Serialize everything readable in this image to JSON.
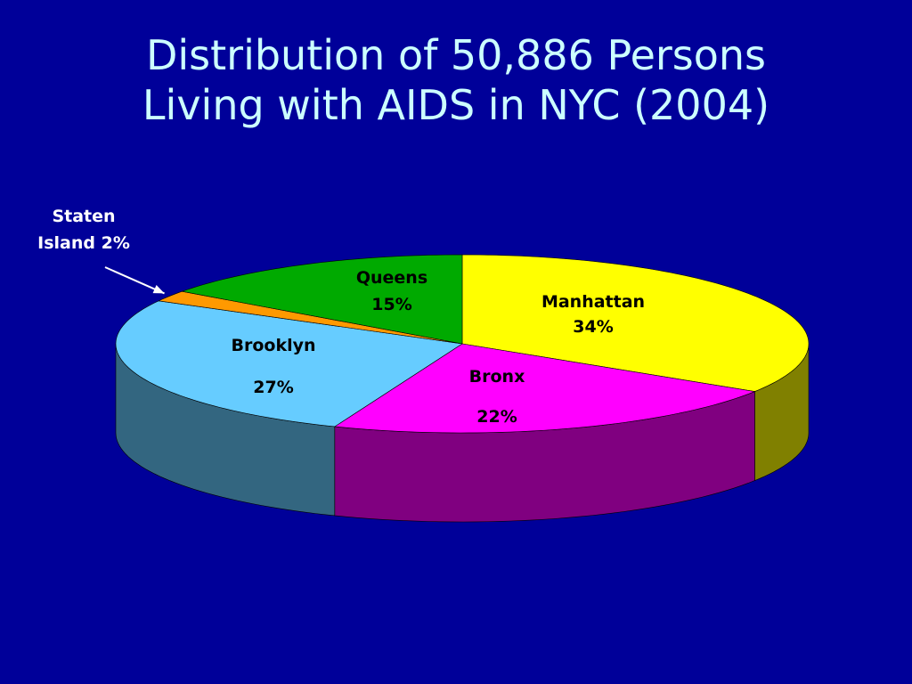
{
  "slide": {
    "title_line1": "Distribution of 50,886 Persons",
    "title_line2": "Living with AIDS in NYC (2004)"
  },
  "chart_data": {
    "type": "pie",
    "title": "Distribution of 50,886 Persons Living with AIDS in NYC (2004)",
    "unit": "%",
    "categories": [
      "Manhattan",
      "Bronx",
      "Brooklyn",
      "Staten Island",
      "Queens"
    ],
    "values": [
      34,
      22,
      27,
      2,
      15
    ],
    "value_labels": [
      "34%",
      "22%",
      "27%",
      "2%",
      "15%"
    ],
    "label_lines": [
      [
        "Manhattan",
        "34%"
      ],
      [
        "Bronx",
        "22%"
      ],
      [
        "Brooklyn",
        "27%"
      ],
      [
        "Staten",
        "Island 2%"
      ],
      [
        "Queens",
        "15%"
      ]
    ],
    "colors": [
      "#ffff00",
      "#ff00ff",
      "#66ccff",
      "#ff9900",
      "#00aa00"
    ],
    "side_colors": [
      "#808000",
      "#800080",
      "#336680",
      "#805000",
      "#005500"
    ],
    "style": "3d",
    "start": "12 o'clock, clockwise",
    "legend": "none"
  }
}
